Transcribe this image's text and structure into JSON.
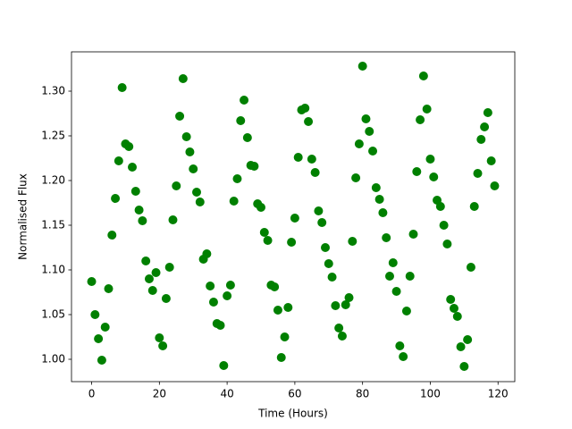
{
  "chart_data": {
    "type": "scatter",
    "x_label": "Time (Hours)",
    "y_label": "Normalised Flux",
    "color": "#008000",
    "xlim": [
      -5.95,
      124.95
    ],
    "ylim": [
      0.975,
      1.344
    ],
    "xticks": [
      0,
      20,
      40,
      60,
      80,
      100,
      120
    ],
    "yticks": [
      {
        "value": 1.0,
        "label": "1.00"
      },
      {
        "value": 1.05,
        "label": "1.05"
      },
      {
        "value": 1.1,
        "label": "1.10"
      },
      {
        "value": 1.15,
        "label": "1.15"
      },
      {
        "value": 1.2,
        "label": "1.20"
      },
      {
        "value": 1.25,
        "label": "1.25"
      },
      {
        "value": 1.3,
        "label": "1.30"
      }
    ],
    "x": [
      0,
      1,
      2,
      3,
      4,
      5,
      6,
      7,
      8,
      9,
      10,
      11,
      12,
      13,
      14,
      15,
      16,
      17,
      18,
      19,
      20,
      21,
      22,
      23,
      24,
      25,
      26,
      27,
      28,
      29,
      30,
      31,
      32,
      33,
      34,
      35,
      36,
      37,
      38,
      39,
      40,
      41,
      42,
      43,
      44,
      45,
      46,
      47,
      48,
      49,
      50,
      51,
      52,
      53,
      54,
      55,
      56,
      57,
      58,
      59,
      60,
      61,
      62,
      63,
      64,
      65,
      66,
      67,
      68,
      69,
      70,
      71,
      72,
      73,
      74,
      75,
      76,
      77,
      78,
      79,
      80,
      81,
      82,
      83,
      84,
      85,
      86,
      87,
      88,
      89,
      90,
      91,
      92,
      93,
      94,
      95,
      96,
      97,
      98,
      99,
      100,
      101,
      102,
      103,
      104,
      105,
      106,
      107,
      108,
      109,
      110,
      111,
      112,
      113,
      114,
      115,
      116,
      117,
      118,
      119
    ],
    "values": [
      1.087,
      1.05,
      1.023,
      0.999,
      1.036,
      1.079,
      1.139,
      1.18,
      1.222,
      1.304,
      1.241,
      1.238,
      1.215,
      1.188,
      1.167,
      1.155,
      1.11,
      1.09,
      1.077,
      1.097,
      1.024,
      1.015,
      1.068,
      1.103,
      1.156,
      1.194,
      1.272,
      1.314,
      1.249,
      1.232,
      1.213,
      1.187,
      1.176,
      1.112,
      1.118,
      1.082,
      1.064,
      1.04,
      1.038,
      0.993,
      1.071,
      1.083,
      1.177,
      1.202,
      1.267,
      1.29,
      1.248,
      1.217,
      1.216,
      1.174,
      1.17,
      1.142,
      1.133,
      1.083,
      1.081,
      1.055,
      1.002,
      1.025,
      1.058,
      1.131,
      1.158,
      1.226,
      1.279,
      1.281,
      1.266,
      1.224,
      1.209,
      1.166,
      1.153,
      1.125,
      1.107,
      1.092,
      1.06,
      1.035,
      1.026,
      1.061,
      1.069,
      1.132,
      1.203,
      1.241,
      1.328,
      1.269,
      1.255,
      1.233,
      1.192,
      1.179,
      1.164,
      1.136,
      1.093,
      1.108,
      1.076,
      1.015,
      1.003,
      1.054,
      1.093,
      1.14,
      1.21,
      1.268,
      1.317,
      1.28,
      1.224,
      1.204,
      1.178,
      1.171,
      1.15,
      1.129,
      1.067,
      1.057,
      1.048,
      1.014,
      0.992,
      1.022,
      1.103,
      1.171,
      1.208,
      1.246,
      1.26,
      1.276,
      1.222,
      1.194
    ]
  }
}
